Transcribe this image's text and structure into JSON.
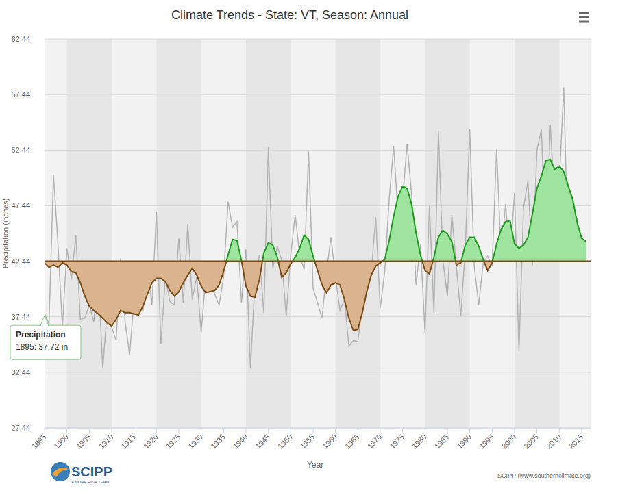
{
  "chart_data": {
    "type": "area",
    "title": "Climate Trends - State: VT, Season: Annual",
    "x_label": "Year",
    "y_label": "Precipitation (inches)",
    "credits": "SCIPP (www.southernclimate.org)",
    "logo_text": "SCIPP",
    "logo_subtitle": "A NOAA RISA TEAM",
    "annotations": [
      {
        "title": "Precipitation",
        "text": "1895: 37.72 in"
      }
    ],
    "baseline": 42.44,
    "x": [
      1895,
      1896,
      1897,
      1898,
      1899,
      1900,
      1901,
      1902,
      1903,
      1904,
      1905,
      1906,
      1907,
      1908,
      1909,
      1910,
      1911,
      1912,
      1913,
      1914,
      1915,
      1916,
      1917,
      1918,
      1919,
      1920,
      1921,
      1922,
      1923,
      1924,
      1925,
      1926,
      1927,
      1928,
      1929,
      1930,
      1931,
      1932,
      1933,
      1934,
      1935,
      1936,
      1937,
      1938,
      1939,
      1940,
      1941,
      1942,
      1943,
      1944,
      1945,
      1946,
      1947,
      1948,
      1949,
      1950,
      1951,
      1952,
      1953,
      1954,
      1955,
      1956,
      1957,
      1958,
      1959,
      1960,
      1961,
      1962,
      1963,
      1964,
      1965,
      1966,
      1967,
      1968,
      1969,
      1970,
      1971,
      1972,
      1973,
      1974,
      1975,
      1976,
      1977,
      1978,
      1979,
      1980,
      1981,
      1982,
      1983,
      1984,
      1985,
      1986,
      1987,
      1988,
      1989,
      1990,
      1991,
      1992,
      1993,
      1994,
      1995,
      1996,
      1997,
      1998,
      1999,
      2000,
      2001,
      2002,
      2003,
      2004,
      2005,
      2006,
      2007,
      2008,
      2009,
      2010,
      2011,
      2012,
      2013,
      2014,
      2015,
      2016
    ],
    "series": [
      {
        "name": "Precipitation",
        "type": "line",
        "color": "#b3b3b3",
        "values": [
          37.72,
          36.8,
          50.2,
          44.0,
          36.5,
          43.6,
          40.8,
          44.8,
          37.2,
          37.3,
          38.5,
          37.0,
          41.2,
          32.8,
          38.0,
          36.5,
          35.3,
          42.7,
          37.0,
          34.0,
          39.0,
          38.5,
          38.0,
          41.8,
          38.5,
          46.9,
          35.0,
          41.0,
          38.8,
          38.5,
          44.5,
          38.7,
          45.8,
          39.0,
          41.0,
          36.0,
          41.0,
          41.5,
          39.5,
          38.5,
          41.0,
          47.8,
          45.5,
          46.0,
          38.7,
          43.5,
          32.8,
          40.5,
          43.0,
          37.8,
          52.7,
          41.8,
          43.8,
          42.5,
          37.5,
          43.0,
          46.6,
          43.0,
          41.7,
          52.3,
          40.0,
          38.7,
          37.3,
          41.5,
          44.6,
          41.0,
          38.0,
          39.0,
          34.8,
          35.3,
          35.2,
          38.5,
          42.0,
          41.5,
          46.4,
          38.2,
          41.5,
          48.0,
          52.8,
          46.5,
          48.0,
          53.0,
          48.5,
          40.3,
          44.0,
          36.0,
          47.4,
          37.8,
          54.2,
          42.5,
          39.3,
          46.6,
          42.0,
          37.5,
          43.5,
          54.3,
          42.0,
          38.5,
          42.3,
          42.9,
          42.0,
          52.6,
          43.0,
          47.6,
          42.7,
          48.6,
          34.3,
          47.2,
          49.7,
          42.1,
          52.4,
          54.3,
          44.0,
          54.7,
          47.3,
          49.5,
          58.1,
          42.5,
          46.5,
          46.3,
          42.5,
          null
        ]
      },
      {
        "type": "area",
        "color": "#7a4a12",
        "values": [
          42.3,
          41.9,
          42.1,
          41.9,
          42.3,
          42.1,
          41.5,
          41.4,
          40.5,
          39.3,
          38.4,
          38.0,
          37.7,
          37.3,
          36.9,
          36.6,
          37.2,
          38.0,
          37.8,
          37.8,
          37.7,
          37.6,
          38.4,
          39.5,
          40.5,
          40.9,
          40.9,
          40.6,
          39.8,
          39.3,
          39.7,
          40.5,
          41.2,
          41.8,
          41.2,
          40.2,
          39.6,
          39.7,
          39.8,
          40.3,
          41.5,
          43.0,
          44.4,
          44.3,
          42.5,
          40.2,
          39.3,
          39.2,
          40.8,
          43.2,
          44.1,
          43.9,
          42.8,
          41.0,
          41.4,
          42.2,
          42.8,
          43.6,
          44.8,
          44.4,
          42.9,
          41.6,
          40.3,
          39.6,
          40.3,
          40.5,
          40.3,
          39.0,
          37.3,
          36.2,
          36.3,
          37.8,
          39.7,
          41.2,
          42.0,
          42.3,
          42.6,
          44.3,
          46.5,
          48.3,
          49.2,
          49.0,
          47.6,
          45.0,
          43.0,
          41.6,
          41.3,
          42.8,
          44.6,
          45.2,
          44.9,
          44.2,
          42.1,
          42.3,
          43.9,
          44.6,
          44.6,
          43.8,
          42.6,
          41.6,
          42.3,
          44.0,
          45.3,
          46.0,
          46.1,
          44.0,
          43.6,
          43.9,
          44.6,
          46.7,
          49.0,
          50.1,
          51.5,
          51.6,
          50.7,
          51.0,
          50.5,
          49.2,
          48.0,
          45.9,
          44.5,
          44.2
        ]
      }
    ],
    "xlim": [
      1895,
      2017
    ],
    "ylim": [
      27.44,
      62.44
    ],
    "xticks": [
      1895,
      1900,
      1905,
      1910,
      1915,
      1920,
      1925,
      1930,
      1935,
      1940,
      1945,
      1950,
      1955,
      1960,
      1965,
      1970,
      1975,
      1980,
      1985,
      1990,
      1995,
      2000,
      2005,
      2010,
      2015
    ],
    "yticks": [
      27.44,
      32.44,
      37.44,
      42.44,
      47.44,
      52.44,
      57.44,
      62.44
    ],
    "grid": true
  }
}
